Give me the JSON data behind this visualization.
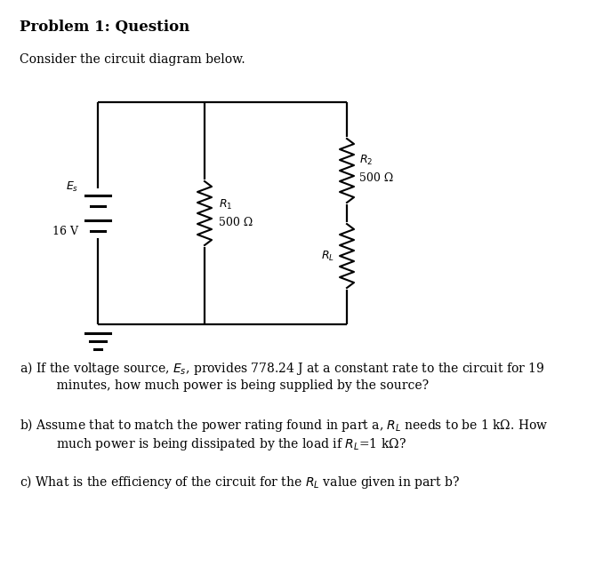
{
  "title": "Problem 1: Question",
  "subtitle": "Consider the circuit diagram below.",
  "bg_color": "#ffffff",
  "text_color": "#000000",
  "title_fontsize": 12,
  "body_fontsize": 10,
  "q_fontsize": 10,
  "Es_label1": "$E_s$",
  "Es_label2": "16 V",
  "R1_label": "$R_1$",
  "R1_value": "500 Ω",
  "R2_label": "$R_2$",
  "R2_value": "500 Ω",
  "RL_label": "$R_L$",
  "qa_line1": "a) If the voltage source, $E_s$, provides 778.24 J at a constant rate to the circuit for 19",
  "qa_line2": "    minutes, how much power is being supplied by the source?",
  "qb_line1": "b) Assume that to match the power rating found in part a, $R_L$ needs to be 1 kΩ. How",
  "qb_line2": "    much power is being dissipated by the load if $R_L$=1 kΩ?",
  "qc_line1": "c) What is the efficiency of the circuit for the $R_L$ value given in part b?"
}
